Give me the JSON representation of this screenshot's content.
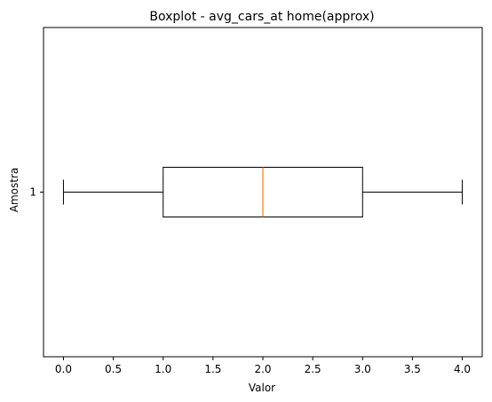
{
  "chart_data": {
    "type": "boxplot",
    "orientation": "horizontal",
    "title": "Boxplot - avg_cars_at home(approx)",
    "xlabel": "Valor",
    "ylabel": "Amostra",
    "xlim": [
      -0.2,
      4.2
    ],
    "xticks": [
      0.0,
      0.5,
      1.0,
      1.5,
      2.0,
      2.5,
      3.0,
      3.5,
      4.0
    ],
    "xtick_labels": [
      "0.0",
      "0.5",
      "1.0",
      "1.5",
      "2.0",
      "2.5",
      "3.0",
      "3.5",
      "4.0"
    ],
    "ylim": [
      0.5,
      1.5
    ],
    "categories": [
      "1"
    ],
    "boxes": [
      {
        "category": "1",
        "whisker_low": 0.0,
        "q1": 1.0,
        "median": 2.0,
        "q3": 3.0,
        "whisker_high": 4.0
      }
    ],
    "colors": {
      "box": "#000000",
      "median": "#ff7f0e",
      "axes": "#000000"
    },
    "grid": false,
    "legend": false
  }
}
